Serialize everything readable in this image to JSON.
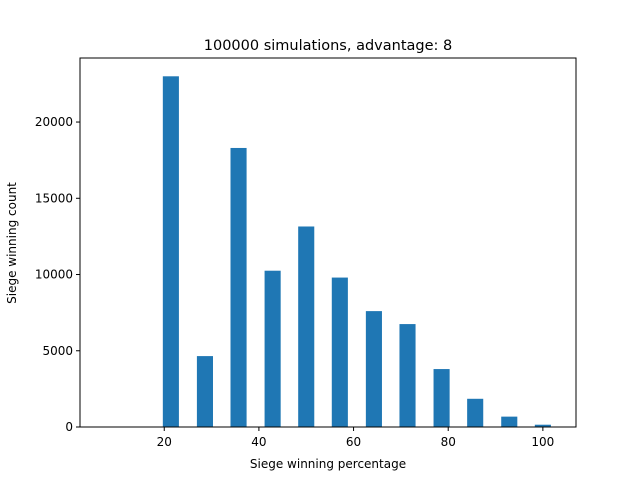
{
  "chart_data": {
    "type": "bar",
    "title": "100000 simulations, advantage: 8",
    "xlabel": "Siege winning percentage",
    "ylabel": "Siege winning count",
    "x": [
      21.4,
      28.6,
      35.7,
      42.9,
      50.0,
      57.1,
      64.3,
      71.4,
      78.6,
      85.7,
      92.9,
      100.0
    ],
    "values": [
      23000,
      4650,
      18300,
      10250,
      13150,
      9800,
      7600,
      6750,
      3800,
      1850,
      680,
      150
    ],
    "bar_width": 3.4,
    "xlim": [
      2.2,
      107.0
    ],
    "ylim": [
      0,
      24200
    ],
    "xticks": [
      20,
      40,
      60,
      80,
      100
    ],
    "yticks": [
      0,
      5000,
      10000,
      15000,
      20000
    ],
    "bar_color": "#1f77b4",
    "grid": false
  }
}
